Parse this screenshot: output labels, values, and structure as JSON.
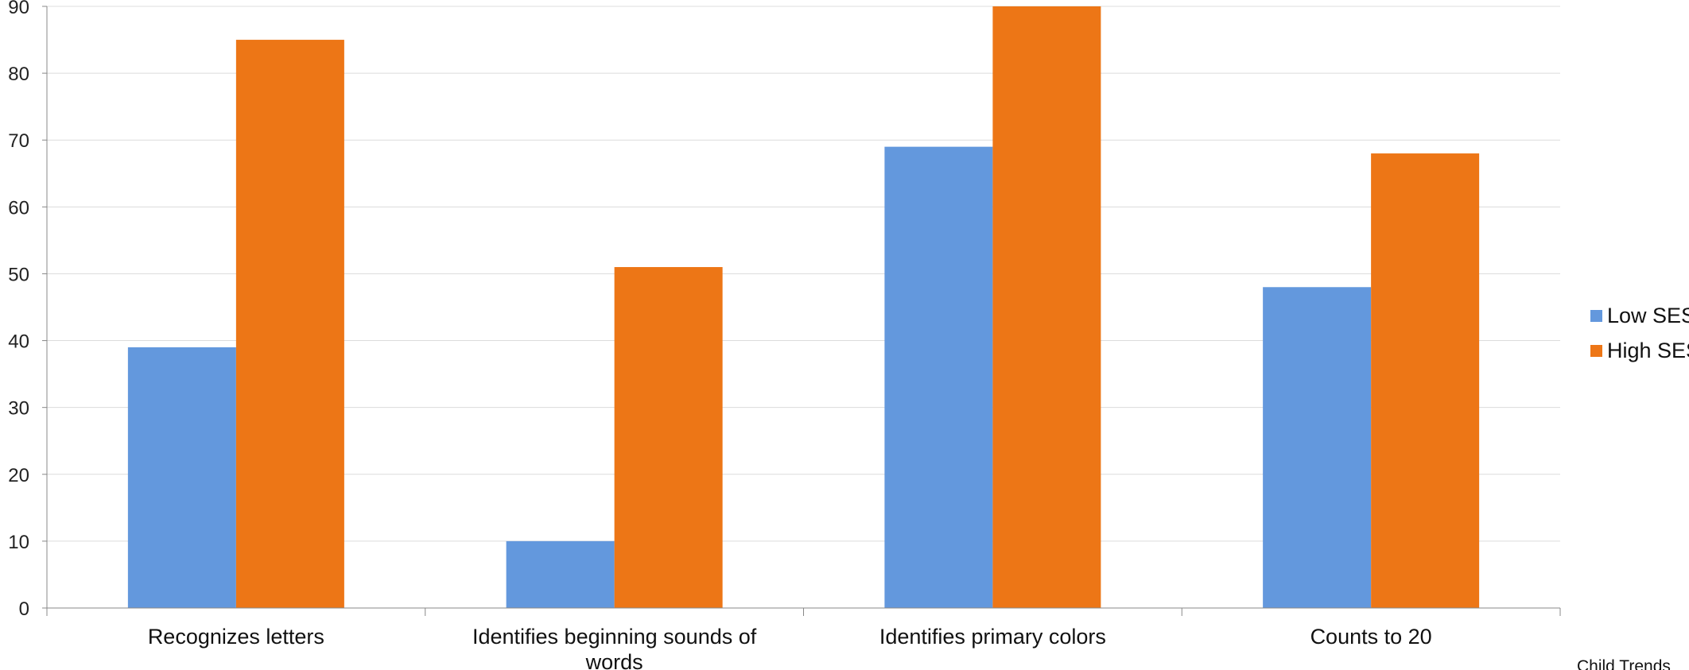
{
  "chart_data": {
    "type": "bar",
    "categories": [
      [
        "Recognizes letters"
      ],
      [
        "Identifies beginning sounds of",
        "words"
      ],
      [
        "Identifies primary colors"
      ],
      [
        "Counts to 20"
      ]
    ],
    "series": [
      {
        "name": "Low SES",
        "color": "#6398DD",
        "values": [
          39,
          10,
          69,
          48
        ]
      },
      {
        "name": "High SES",
        "color": "#ED7616",
        "values": [
          85,
          51,
          90,
          68
        ]
      }
    ],
    "ylim": [
      0,
      90
    ],
    "yticks": [
      0,
      10,
      20,
      30,
      40,
      50,
      60,
      70,
      80,
      90
    ],
    "grid": true,
    "legend_position": "right",
    "source": "Child Trends"
  }
}
